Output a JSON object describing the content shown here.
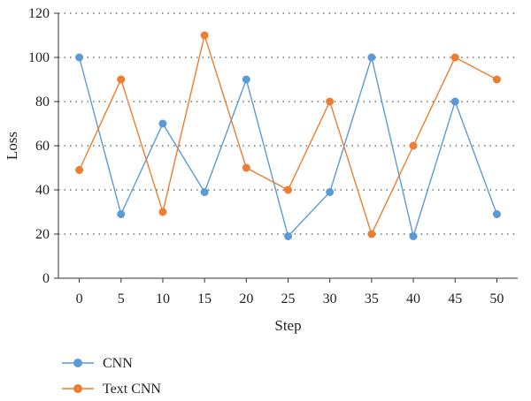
{
  "chart_data": {
    "type": "line",
    "xlabel": "Step",
    "ylabel": "Loss",
    "x": [
      0,
      5,
      10,
      15,
      20,
      25,
      30,
      35,
      40,
      45,
      50
    ],
    "xlim": [
      -2.5,
      52.5
    ],
    "ylim": [
      0,
      120
    ],
    "x_ticks": [
      "0",
      "5",
      "10",
      "15",
      "20",
      "25",
      "30",
      "35",
      "40",
      "45",
      "50"
    ],
    "y_ticks": [
      "0",
      "20",
      "40",
      "60",
      "80",
      "100",
      "120"
    ],
    "grid": "horizontal dotted",
    "legend_position": "bottom-left",
    "series": [
      {
        "name": "CNN",
        "color": "#5b9bd5",
        "values": [
          100,
          29,
          70,
          39,
          90,
          19,
          39,
          100,
          19,
          80,
          29
        ]
      },
      {
        "name": "Text CNN",
        "color": "#ed7d31",
        "values": [
          49,
          90,
          30,
          110,
          50,
          40,
          80,
          20,
          60,
          100,
          90
        ]
      }
    ]
  }
}
